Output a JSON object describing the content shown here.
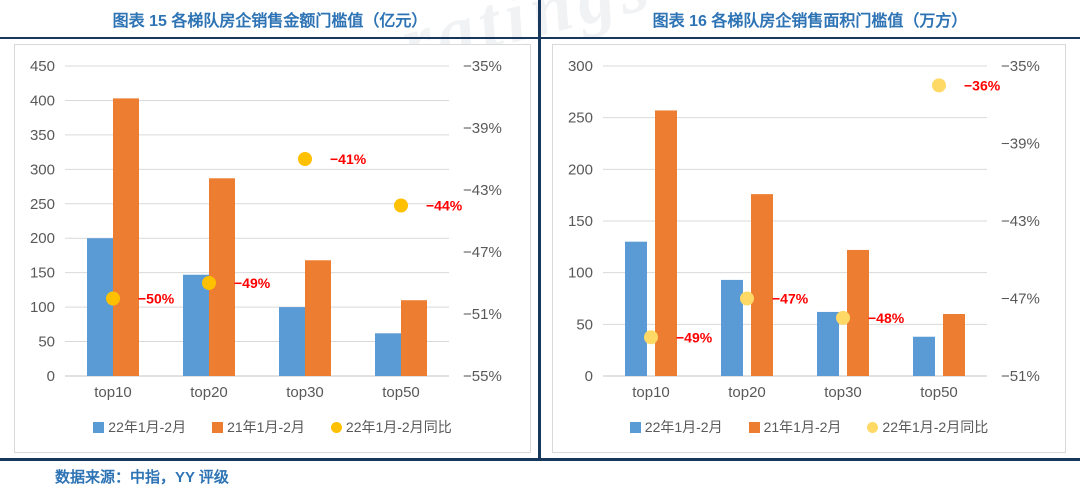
{
  "page": {
    "source_note": "数据来源：中指，YY 评级",
    "watermark": "ratings"
  },
  "colors": {
    "title_blue": "#2E74B5",
    "rule_navy": "#17375D",
    "bar_blue": "#5B9BD5",
    "bar_orange": "#ED7D31",
    "dot_gold": "#FFC000",
    "dot_pale_yellow": "#FFD966",
    "label_red": "#FF0000",
    "axis_gray": "#595959",
    "gridline_gray": "#D9D9D9"
  },
  "chart_data": [
    {
      "type": "bar",
      "title": "图表 15 各梯队房企销售金额门槛值（亿元）",
      "categories": [
        "top10",
        "top20",
        "top30",
        "top50"
      ],
      "series": [
        {
          "name": "22年1月-2月",
          "type": "bar",
          "color": "#5B9BD5",
          "values": [
            200,
            147,
            100,
            62
          ]
        },
        {
          "name": "21年1月-2月",
          "type": "bar",
          "color": "#ED7D31",
          "values": [
            403,
            287,
            168,
            110
          ]
        },
        {
          "name": "22年1月-2月同比",
          "type": "scatter",
          "axis": "right",
          "color": "#FFC000",
          "values": [
            -50,
            -49,
            -41,
            -44
          ],
          "labels": [
            "−50%",
            "−49%",
            "−41%",
            "−44%"
          ]
        }
      ],
      "left_axis": {
        "min": 0,
        "max": 450,
        "ticks": [
          450,
          400,
          350,
          300,
          250,
          200,
          150,
          100,
          50,
          0
        ]
      },
      "right_axis": {
        "min": -55,
        "max": -35,
        "tick_labels": [
          "−35%",
          "−39%",
          "−43%",
          "−47%",
          "−51%",
          "−55%"
        ],
        "tick_values": [
          -35,
          -39,
          -43,
          -47,
          -51,
          -55
        ]
      },
      "grid": true,
      "legend_position": "bottom"
    },
    {
      "type": "bar",
      "title": "图表 16 各梯队房企销售面积门槛值（万方）",
      "categories": [
        "top10",
        "top20",
        "top30",
        "top50"
      ],
      "series": [
        {
          "name": "22年1月-2月",
          "type": "bar",
          "color": "#5B9BD5",
          "values": [
            130,
            93,
            62,
            38
          ]
        },
        {
          "name": "21年1月-2月",
          "type": "bar",
          "color": "#ED7D31",
          "values": [
            257,
            176,
            122,
            60
          ]
        },
        {
          "name": "22年1月-2月同比",
          "type": "scatter",
          "axis": "right",
          "color": "#FFD966",
          "values": [
            -49,
            -47,
            -48,
            -36
          ],
          "labels": [
            "−49%",
            "−47%",
            "−48%",
            "−36%"
          ]
        }
      ],
      "left_axis": {
        "min": 0,
        "max": 300,
        "ticks": [
          300,
          250,
          200,
          150,
          100,
          50,
          0
        ]
      },
      "right_axis": {
        "min": -51,
        "max": -35,
        "tick_labels": [
          "−35%",
          "−39%",
          "−43%",
          "−47%",
          "−51%"
        ],
        "tick_values": [
          -35,
          -39,
          -43,
          -47,
          -51
        ]
      },
      "grid": true,
      "legend_position": "bottom"
    }
  ]
}
